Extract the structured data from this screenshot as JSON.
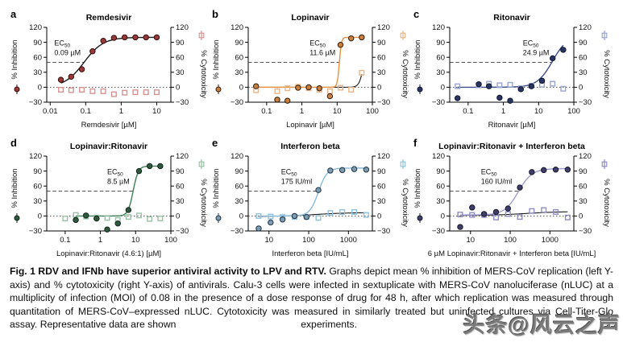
{
  "figure": {
    "caption_bold": "Fig. 1 RDV and IFNb have superior antiviral activity to LPV and RTV.",
    "caption_text": "Graphs depict mean % inhibition of MERS-CoV replication (left Y-axis) and % cytotoxicity (right Y-axis) of antivirals. Calu-3 cells were infected in sextuplicate with MERS-CoV nanoluciferase (nLUC) at a multiplicity of infection (MOI) of 0.08 in the presence of a dose response of drug for 48 h, after which replication was measured through quantitation of MERS-CoV–expressed nLUC. Cytotoxicity was measured in similarly treated but uninfected cultures via Cell-Titer-Glo assay. Representative data are shown",
    "caption_end": "experiments.",
    "watermark": "头条@风云之声"
  },
  "axes": {
    "left_label": "% Inhibition",
    "right_label": "% Cytotoxicity",
    "y_ticks": [
      120,
      90,
      60,
      30,
      0,
      -30
    ],
    "ylim": [
      -30,
      120
    ]
  },
  "chart_data": [
    {
      "panel": "a",
      "type": "scatter",
      "title": "Remdesivir",
      "xlabel": "Remdesivir [µM]",
      "x_ticks": [
        0.01,
        0.1,
        1,
        10
      ],
      "x_range": [
        0.008,
        25
      ],
      "ylim": [
        -30,
        120
      ],
      "ec50_prefix": "EC",
      "ec50_sub": "50",
      "ec50_value": "0.09 µM",
      "ec50_x": 0.09,
      "colors": {
        "point": "#9a3939",
        "point_stroke": "#350d0d",
        "curve": "#1c1c1c",
        "square": "#d79292",
        "cyto_line": null
      },
      "inhibition": {
        "x": [
          0.02,
          0.039,
          0.078,
          0.156,
          0.313,
          0.625,
          1.25,
          2.5,
          5,
          10
        ],
        "y": [
          15,
          21,
          36,
          72,
          93,
          99,
          100,
          100,
          100,
          100
        ]
      },
      "cytotoxicity": {
        "x": [
          0.02,
          0.039,
          0.078,
          0.156,
          0.313,
          0.625,
          1.25,
          2.5,
          5,
          10
        ],
        "y": [
          -5,
          -6,
          -5,
          -8,
          -8,
          -14,
          -11,
          -10,
          -10,
          -10
        ]
      },
      "fit": {
        "bottom": 0,
        "top": 100,
        "ec50": 0.09,
        "hill": 1.6
      },
      "cyto_fit": null
    },
    {
      "panel": "b",
      "type": "scatter",
      "title": "Lopinavir",
      "xlabel": "Lopinavir [µM]",
      "x_ticks": [
        0.1,
        1,
        10,
        100
      ],
      "x_range": [
        0.03,
        100
      ],
      "ylim": [
        -30,
        120
      ],
      "ec50_prefix": "EC",
      "ec50_sub": "50",
      "ec50_value": "11.6 µM",
      "ec50_x": 11.6,
      "colors": {
        "point": "#c97f3f",
        "point_stroke": "#2f1d07",
        "curve": "#e8913f",
        "square": "#eab488",
        "cyto_line": "#1c1c1c"
      },
      "inhibition": {
        "x": [
          0.05,
          0.2,
          0.39,
          0.78,
          1.56,
          3.13,
          6.25,
          12.5,
          25,
          50
        ],
        "y": [
          2,
          -25,
          -27,
          -1,
          0,
          -2,
          -18,
          85,
          98,
          100
        ]
      },
      "cytotoxicity": {
        "x": [
          0.05,
          0.2,
          0.39,
          0.78,
          1.56,
          3.13,
          6.25,
          12.5,
          25,
          50
        ],
        "y": [
          -6,
          -8,
          -2,
          1,
          -2,
          -5,
          -8,
          -1,
          -5,
          29
        ]
      },
      "fit": {
        "bottom": 0,
        "top": 100,
        "ec50": 11.6,
        "hill": 15
      },
      "cyto_fit": {
        "bottom": 0,
        "top": 100,
        "ec50": 58,
        "hill": 7
      }
    },
    {
      "panel": "c",
      "type": "scatter",
      "title": "Ritonavir",
      "xlabel": "Ritonavir [µM]",
      "x_ticks": [
        0.1,
        1,
        10,
        100
      ],
      "x_range": [
        0.03,
        100
      ],
      "ylim": [
        -30,
        120
      ],
      "ec50_prefix": "EC",
      "ec50_sub": "50",
      "ec50_value": "24.9 µM",
      "ec50_x": 24.9,
      "colors": {
        "point": "#2a3560",
        "point_stroke": "#0f1430",
        "curve": "#3e4e87",
        "square": "#98a3ce",
        "cyto_line": null
      },
      "inhibition": {
        "x": [
          0.05,
          0.2,
          0.39,
          0.78,
          1.56,
          3.13,
          6.25,
          12.5,
          25,
          50
        ],
        "y": [
          -22,
          6,
          2,
          -21,
          -27,
          -4,
          2,
          13,
          58,
          75
        ]
      },
      "cytotoxicity": {
        "x": [
          0.05,
          0.2,
          0.39,
          0.78,
          1.56,
          3.13,
          6.25,
          12.5,
          25,
          50
        ],
        "y": [
          2,
          4,
          7,
          4,
          5,
          -2,
          3,
          5,
          7,
          -3
        ]
      },
      "fit": {
        "bottom": 0,
        "top": 105,
        "ec50": 24.9,
        "hill": 2
      },
      "cyto_fit": null
    },
    {
      "panel": "d",
      "type": "scatter",
      "title": "Lopinavir:Ritonavir",
      "xlabel": "Lopinavir:Ritonavir (4.6:1) [µM]",
      "x_ticks": [
        0.1,
        1,
        10,
        100
      ],
      "x_range": [
        0.03,
        100
      ],
      "ylim": [
        -30,
        120
      ],
      "ec50_prefix": "EC",
      "ec50_sub": "50",
      "ec50_value": "8.5 µM",
      "ec50_x": 8.5,
      "colors": {
        "point": "#30593f",
        "point_stroke": "#0f2418",
        "curve": "#3f7f57",
        "square": "#99c2a7",
        "cyto_line": null
      },
      "inhibition": {
        "x": [
          0.2,
          0.39,
          0.78,
          1.56,
          3.13,
          6.25,
          12.5,
          25,
          50
        ],
        "y": [
          -8,
          1,
          -5,
          -27,
          -15,
          12,
          90,
          100,
          100
        ]
      },
      "cytotoxicity": {
        "x": [
          0.1,
          0.2,
          0.39,
          0.78,
          1.56,
          3.13,
          6.25,
          12.5,
          25,
          50
        ],
        "y": [
          -5,
          2,
          -1,
          -3,
          -4,
          -8,
          -2,
          1,
          -6,
          -5
        ]
      },
      "fit": {
        "bottom": 0,
        "top": 100,
        "ec50": 8.5,
        "hill": 6
      },
      "cyto_fit": null
    },
    {
      "panel": "e",
      "type": "scatter",
      "title": "Interferon beta",
      "xlabel": "Interferon beta [IU/mL]",
      "x_ticks": [
        10,
        100,
        1000
      ],
      "x_range": [
        3,
        4000
      ],
      "ylim": [
        -30,
        120
      ],
      "ec50_prefix": "EC",
      "ec50_sub": "50",
      "ec50_value": "175 IU/ml",
      "ec50_x": 175,
      "colors": {
        "point": "#7b9cb2",
        "point_stroke": "#223240",
        "curve": "#88bada",
        "square": "#90c3de",
        "cyto_line": "#1c1c1c"
      },
      "inhibition": {
        "x": [
          5.5,
          11,
          22,
          44,
          88,
          175,
          350,
          700,
          1400,
          2800
        ],
        "y": [
          -25,
          -13,
          -7,
          0,
          -2,
          52,
          91,
          92,
          94,
          93
        ]
      },
      "cytotoxicity": {
        "x": [
          5.5,
          11,
          22,
          44,
          88,
          175,
          350,
          700,
          1400,
          2800
        ],
        "y": [
          0,
          -1,
          -2,
          -2,
          -2,
          -4,
          6,
          8,
          8,
          2
        ]
      },
      "fit": {
        "bottom": 0,
        "top": 96,
        "ec50": 175,
        "hill": 4
      },
      "cyto_fit": {
        "bottom": -1,
        "top": 7,
        "ec50": 150,
        "hill": 1
      }
    },
    {
      "panel": "f",
      "type": "scatter",
      "title": "Lopinavir:Ritonavir + Interferon beta",
      "xlabel": "6 µM Lopinavir:Ritonavir + Interferon beta [IU/mL]",
      "x_ticks": [
        10,
        100,
        1000
      ],
      "x_range": [
        3,
        4000
      ],
      "ylim": [
        -30,
        120
      ],
      "ec50_prefix": "EC",
      "ec50_sub": "50",
      "ec50_value": "160 IU/ml",
      "ec50_x": 160,
      "colors": {
        "point": "#403f68",
        "point_stroke": "#16162c",
        "curve": "#a09dd1",
        "square": "#908dc1",
        "cyto_line": "#1c1c1c"
      },
      "inhibition": {
        "x": [
          5.5,
          11,
          22,
          44,
          88,
          175,
          350,
          700,
          1400,
          2800
        ],
        "y": [
          -22,
          17,
          4,
          8,
          15,
          57,
          88,
          92,
          93,
          93
        ]
      },
      "cytotoxicity": {
        "x": [
          5.5,
          11,
          22,
          44,
          88,
          175,
          350,
          700,
          1400,
          2800
        ],
        "y": [
          3,
          2,
          2,
          -3,
          4,
          -2,
          10,
          12,
          8,
          -3
        ]
      },
      "fit": {
        "bottom": 2,
        "top": 95,
        "ec50": 160,
        "hill": 2.5
      },
      "cyto_fit": {
        "bottom": 1,
        "top": 9,
        "ec50": 250,
        "hill": 1
      }
    }
  ]
}
